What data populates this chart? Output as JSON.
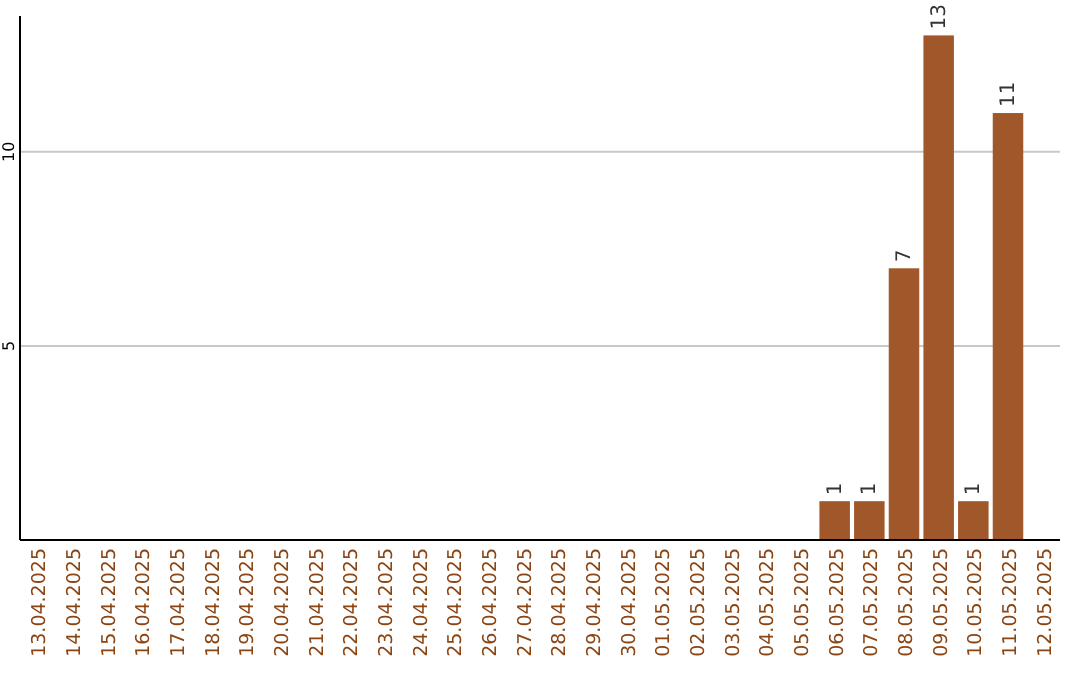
{
  "chart_data": {
    "type": "bar",
    "categories": [
      "13.04.2025",
      "14.04.2025",
      "15.04.2025",
      "16.04.2025",
      "17.04.2025",
      "18.04.2025",
      "19.04.2025",
      "20.04.2025",
      "21.04.2025",
      "22.04.2025",
      "23.04.2025",
      "24.04.2025",
      "25.04.2025",
      "26.04.2025",
      "27.04.2025",
      "28.04.2025",
      "29.04.2025",
      "30.04.2025",
      "01.05.2025",
      "02.05.2025",
      "03.05.2025",
      "04.05.2025",
      "05.05.2025",
      "06.05.2025",
      "07.05.2025",
      "08.05.2025",
      "09.05.2025",
      "10.05.2025",
      "11.05.2025",
      "12.05.2025"
    ],
    "values": [
      0,
      0,
      0,
      0,
      0,
      0,
      0,
      0,
      0,
      0,
      0,
      0,
      0,
      0,
      0,
      0,
      0,
      0,
      0,
      0,
      0,
      0,
      0,
      1,
      1,
      7,
      13,
      1,
      11,
      0
    ],
    "value_labels": [
      null,
      null,
      null,
      null,
      null,
      null,
      null,
      null,
      null,
      null,
      null,
      null,
      null,
      null,
      null,
      null,
      null,
      null,
      null,
      null,
      null,
      null,
      null,
      "1",
      "1",
      "7",
      "13",
      "1",
      "11",
      null
    ],
    "color": "#a0582a",
    "ylim": [
      0,
      13.5
    ],
    "yticks": [
      5,
      10
    ],
    "grid": "y"
  }
}
